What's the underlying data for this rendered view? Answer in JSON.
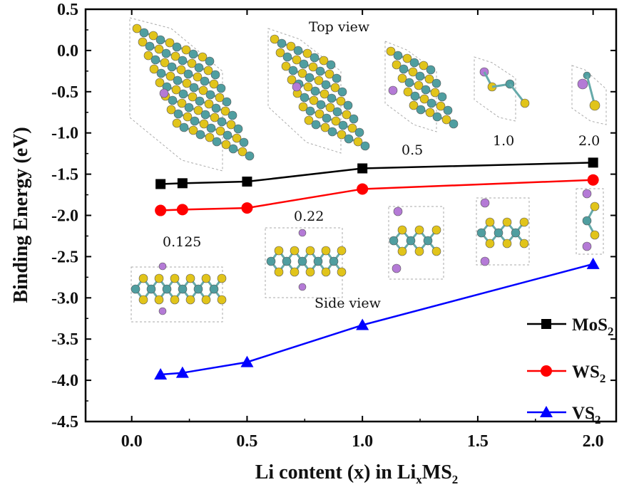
{
  "chart_data": {
    "type": "line",
    "xlabel": "Li content (x) in LixMS2",
    "ylabel": "Binding Energy (eV)",
    "xlim": [
      -0.2,
      2.1
    ],
    "ylim": [
      -4.5,
      0.5
    ],
    "x_ticks": [
      "0.0",
      "0.5",
      "1.0",
      "1.5",
      "2.0"
    ],
    "x_tick_values": [
      0,
      0.5,
      1.0,
      1.5,
      2.0
    ],
    "y_ticks": [
      "0.5",
      "0.0",
      "-0.5",
      "-1.0",
      "-1.5",
      "-2.0",
      "-2.5",
      "-3.0",
      "-3.5",
      "-4.0",
      "-4.5"
    ],
    "y_tick_values": [
      0.5,
      0,
      -0.5,
      -1.0,
      -1.5,
      -2.0,
      -2.5,
      -3.0,
      -3.5,
      -4.0,
      -4.5
    ],
    "grid": false,
    "legend_position": "bottom-right",
    "x": [
      0.125,
      0.22,
      0.5,
      1.0,
      2.0
    ],
    "series": [
      {
        "name": "MoS2",
        "base": "MoS",
        "subscript": "2",
        "color": "#000000",
        "marker": "square",
        "values": [
          -1.62,
          -1.61,
          -1.59,
          -1.43,
          -1.36
        ]
      },
      {
        "name": "WS2",
        "base": "WS",
        "subscript": "2",
        "color": "#ff0000",
        "marker": "circle",
        "values": [
          -1.94,
          -1.93,
          -1.91,
          -1.68,
          -1.57
        ]
      },
      {
        "name": "VS2",
        "base": "VS",
        "subscript": "2",
        "color": "#0000ff",
        "marker": "triangle",
        "values": [
          -3.93,
          -3.91,
          -3.78,
          -3.33,
          -2.59
        ]
      }
    ],
    "annotations": {
      "top_view": "Top view",
      "side_view": "Side view",
      "labels": [
        "0.125",
        "0.22",
        "0.5",
        "1.0",
        "2.0"
      ]
    },
    "atom_colors": {
      "metal": "#4f9ea0",
      "sulfur": "#e1c41a",
      "lithium": "#b47ad6"
    }
  }
}
